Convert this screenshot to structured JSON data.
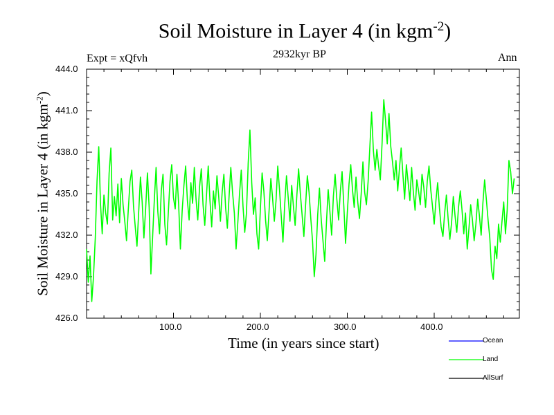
{
  "chart_data": {
    "type": "line",
    "title_main": "Soil Moisture in Layer 4 (in kgm",
    "title_sup": "-2",
    "title_end": ")",
    "subtitle_left": "Expt = xQfvh",
    "subtitle_center": "2932kyr BP",
    "subtitle_right": "Ann",
    "xlabel": "Time (in years since start)",
    "ylabel_main": "Soil Moisture in Layer 4 (in kgm",
    "ylabel_sup": "-2",
    "ylabel_end": ")",
    "xlim": [
      0,
      498
    ],
    "ylim": [
      426.0,
      444.0
    ],
    "x_ticks": [
      100,
      200,
      300,
      400
    ],
    "x_tick_labels": [
      "100.0",
      "200.0",
      "300.0",
      "400.0"
    ],
    "y_ticks": [
      426,
      429,
      432,
      435,
      438,
      441,
      444
    ],
    "y_tick_labels": [
      "426.0",
      "429.0",
      "432.0",
      "435.0",
      "438.0",
      "441.0",
      "444.0"
    ],
    "series": [
      {
        "name": "Land",
        "color": "#00ff00",
        "x_start": 0,
        "x_step": 2,
        "values": [
          431.0,
          428.6,
          430.5,
          427.2,
          429.0,
          431.8,
          435.9,
          438.4,
          434.3,
          432.1,
          434.9,
          433.6,
          432.8,
          436.5,
          438.3,
          433.1,
          434.8,
          433.4,
          435.7,
          432.9,
          436.1,
          434.2,
          433.0,
          431.6,
          433.8,
          435.9,
          436.7,
          434.1,
          432.6,
          431.2,
          433.7,
          436.2,
          434.4,
          431.8,
          433.9,
          436.5,
          434.0,
          429.2,
          431.9,
          434.6,
          436.9,
          433.7,
          432.1,
          435.2,
          436.4,
          432.8,
          431.3,
          433.6,
          435.9,
          437.1,
          434.7,
          433.9,
          436.4,
          434.2,
          431.0,
          433.8,
          435.6,
          437.0,
          434.5,
          433.1,
          435.8,
          434.3,
          436.9,
          434.6,
          433.1,
          435.5,
          436.8,
          434.2,
          432.7,
          434.9,
          437.0,
          434.5,
          432.6,
          435.2,
          433.9,
          436.3,
          434.8,
          433.0,
          435.1,
          436.4,
          434.0,
          432.5,
          434.8,
          436.9,
          435.1,
          433.6,
          431.0,
          432.9,
          435.0,
          436.7,
          434.1,
          432.2,
          433.6,
          437.2,
          439.6,
          435.8,
          433.5,
          434.7,
          432.1,
          431.0,
          433.9,
          436.5,
          435.2,
          433.1,
          431.6,
          433.8,
          436.1,
          434.7,
          433.0,
          434.5,
          437.0,
          435.3,
          433.4,
          431.5,
          434.2,
          436.3,
          434.7,
          433.0,
          435.6,
          434.1,
          432.7,
          434.9,
          436.8,
          435.0,
          433.5,
          431.9,
          434.2,
          436.3,
          435.1,
          433.2,
          431.6,
          429.0,
          430.6,
          433.5,
          435.4,
          433.1,
          431.6,
          430.1,
          432.9,
          435.3,
          433.7,
          432.0,
          434.8,
          436.4,
          434.6,
          433.1,
          435.2,
          436.6,
          434.1,
          431.4,
          433.6,
          435.7,
          437.1,
          435.3,
          434.0,
          436.2,
          434.4,
          433.2,
          435.0,
          437.3,
          435.1,
          434.2,
          435.9,
          438.4,
          440.9,
          438.1,
          436.7,
          438.2,
          437.0,
          436.0,
          438.6,
          441.8,
          440.3,
          438.6,
          440.8,
          438.4,
          437.3,
          436.0,
          437.4,
          435.2,
          436.8,
          438.3,
          436.4,
          434.6,
          437.1,
          435.8,
          434.5,
          436.9,
          435.1,
          433.8,
          436.0,
          435.2,
          434.2,
          436.4,
          435.5,
          434.0,
          435.9,
          437.0,
          435.3,
          434.1,
          432.8,
          434.5,
          435.8,
          434.0,
          432.6,
          431.9,
          433.6,
          434.9,
          433.2,
          431.7,
          432.9,
          434.8,
          433.4,
          432.2,
          434.0,
          435.2,
          433.8,
          432.1,
          433.6,
          431.0,
          432.5,
          434.2,
          433.1,
          431.6,
          432.8,
          434.6,
          433.4,
          432.0,
          434.3,
          436.0,
          434.6,
          433.1,
          431.8,
          429.5,
          428.8,
          431.2,
          430.3,
          432.8,
          431.5,
          433.0,
          434.4,
          432.1,
          433.8,
          437.4,
          436.6,
          435.0,
          436.1
        ]
      },
      {
        "name": "Ocean",
        "color": "#0000ff",
        "values": []
      },
      {
        "name": "AllSurf",
        "color": "#000000",
        "values": []
      }
    ],
    "legend": [
      {
        "label": "Ocean",
        "color": "#0000ff"
      },
      {
        "label": "Land",
        "color": "#00ff00"
      },
      {
        "label": "AllSurf",
        "color": "#000000"
      }
    ]
  }
}
